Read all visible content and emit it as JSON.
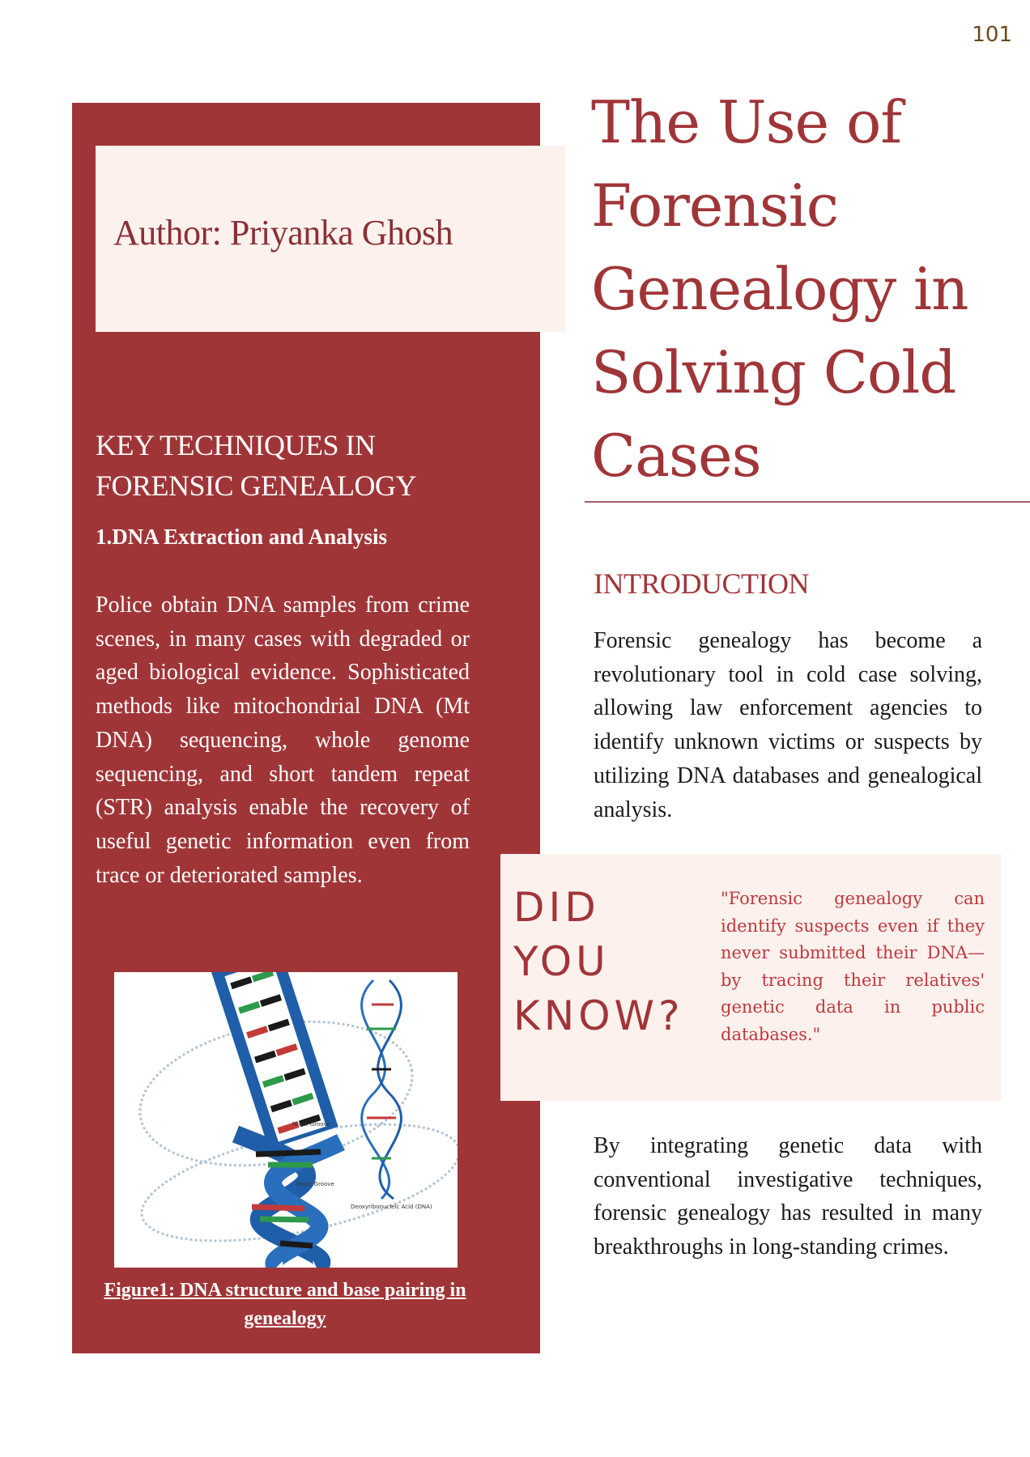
{
  "page_number": "101",
  "author": "Author: Priyanka Ghosh",
  "title": "The Use of Forensic Genealogy in Solving Cold Cases",
  "left": {
    "heading": "KEY TECHNIQUES IN FORENSIC GENEALOGY",
    "subheading": "1.DNA Extraction and Analysis",
    "body": "Police obtain DNA samples from crime scenes, in many cases with degraded or aged biological evidence. Sophisticated methods like mitochondrial DNA (Mt DNA) sequencing, whole genome sequencing, and short tandem repeat (STR) analysis enable the recovery of useful genetic information even from trace or deteriorated samples.",
    "figure_labels": {
      "minor_groove": "Minor Groove",
      "major_groove": "Major Groove",
      "dna_label": "Deoxyribonucleic Acid (DNA)"
    },
    "caption": "Figure1: DNA structure and base pairing in genealogy"
  },
  "introduction": {
    "heading": "INTRODUCTION",
    "body": "Forensic genealogy has become a revolutionary tool in cold case solving, allowing law enforcement agencies to identify unknown victims or suspects by utilizing DNA databases and genealogical analysis."
  },
  "did_you_know": {
    "title": "DID YOU KNOW?",
    "quote": "\"Forensic genealogy can identify suspects even if they never submitted their DNA—by tracing their relatives' genetic data in public databases.\""
  },
  "closing": {
    "body": "By integrating genetic data with conventional investigative techniques, forensic genealogy has resulted in many breakthroughs in long-standing crimes."
  },
  "colors": {
    "maroon": "#a03538",
    "cream": "#fcf1ed",
    "quote_red": "#c0383c",
    "helix_blue": "#1f5ea8"
  }
}
